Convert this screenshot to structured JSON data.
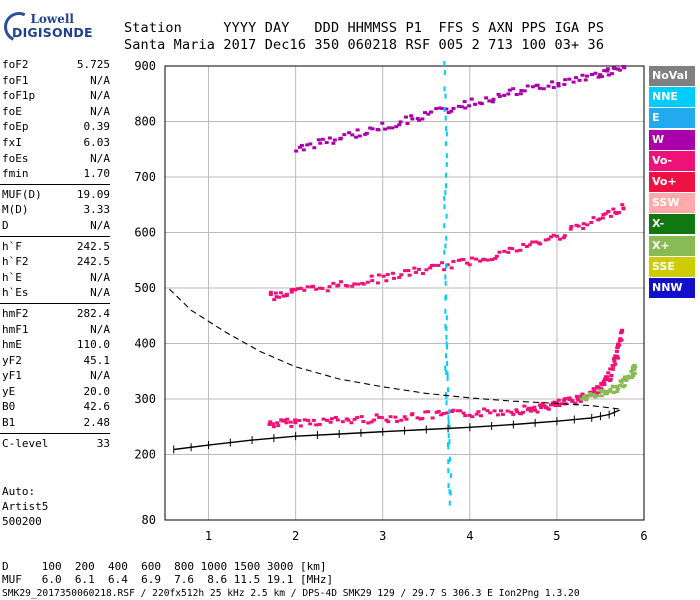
{
  "brand": {
    "line1": "Lowell",
    "line2": "DIGISONDE"
  },
  "header": {
    "line1": "Station     YYYY DAY   DDD HHMMSS P1  FFS S AXN PPS IGA PS",
    "line2": "Santa Maria 2017 Dec16 350 060218 RSF 005 2 713 100 03+ 36"
  },
  "params": [
    [
      {
        "label": "foF2",
        "value": "5.725"
      },
      {
        "label": "foF1",
        "value": "N/A"
      },
      {
        "label": "foF1p",
        "value": "N/A"
      },
      {
        "label": "foE",
        "value": "N/A"
      },
      {
        "label": "foEp",
        "value": "0.39"
      },
      {
        "label": "fxI",
        "value": "6.03"
      },
      {
        "label": "foEs",
        "value": "N/A"
      },
      {
        "label": "fmin",
        "value": "1.70"
      }
    ],
    [
      {
        "label": "MUF(D)",
        "value": "19.09"
      },
      {
        "label": "M(D)",
        "value": "3.33"
      },
      {
        "label": "D",
        "value": "N/A"
      }
    ],
    [
      {
        "label": "h`F",
        "value": "242.5"
      },
      {
        "label": "h`F2",
        "value": "242.5"
      },
      {
        "label": "h`E",
        "value": "N/A"
      },
      {
        "label": "h`Es",
        "value": "N/A"
      }
    ],
    [
      {
        "label": "hmF2",
        "value": "282.4"
      },
      {
        "label": "hmF1",
        "value": "N/A"
      },
      {
        "label": "hmE",
        "value": "110.0"
      },
      {
        "label": "yF2",
        "value": "45.1"
      },
      {
        "label": "yF1",
        "value": "N/A"
      },
      {
        "label": "yE",
        "value": "20.0"
      },
      {
        "label": "B0",
        "value": "42.6"
      },
      {
        "label": "B1",
        "value": "2.48"
      }
    ],
    [
      {
        "label": "C-level",
        "value": "33"
      }
    ]
  ],
  "auto": {
    "line1": "Auto:",
    "line2": "Artist5",
    "line3": "500200"
  },
  "footer": {
    "line1": "D     100  200  400  600  800 1000 1500 3000 [km]",
    "line2": "MUF   6.0  6.1  6.4  6.9  7.6  8.6 11.5 19.1 [MHz]",
    "line3": "SMK29_2017350060218.RSF / 220fx512h 25 kHz 2.5 km / DPS-4D SMK29 129 / 29.7 S 306.3 E Ion2Png 1.3.20"
  },
  "legend": [
    {
      "label": "NoVal",
      "color": "#808080"
    },
    {
      "label": "NNE",
      "color": "#00ccff"
    },
    {
      "label": "E",
      "color": "#22aaee"
    },
    {
      "label": "W",
      "color": "#aa00aa"
    },
    {
      "label": "Vo-",
      "color": "#ee1177"
    },
    {
      "label": "Vo+",
      "color": "#ee1144"
    },
    {
      "label": "SSW",
      "color": "#ffaaaa"
    },
    {
      "label": "X-",
      "color": "#117711"
    },
    {
      "label": "X+",
      "color": "#88bb55"
    },
    {
      "label": "SSE",
      "color": "#cccc00"
    },
    {
      "label": "NNW",
      "color": "#1111cc"
    }
  ],
  "chart_data": {
    "type": "scatter",
    "xlim": [
      0.5,
      6.0
    ],
    "ylim": [
      80,
      900
    ],
    "x_ticks": [
      1,
      2,
      3,
      4,
      5,
      6
    ],
    "x_tick_labels": [
      "1",
      "2",
      "3",
      "4",
      "5",
      "6"
    ],
    "y_ticks": [
      80,
      200,
      300,
      400,
      500,
      600,
      700,
      800,
      900
    ],
    "y_tick_labels": [
      "80",
      "200",
      "300",
      "400",
      "500",
      "600",
      "700",
      "800",
      "900"
    ],
    "grid": true,
    "series": [
      {
        "name": "Vo+",
        "kind": "trace",
        "color": "#ee1177",
        "points": [
          [
            1.7,
            255
          ],
          [
            2.0,
            258
          ],
          [
            2.5,
            261
          ],
          [
            3.0,
            265
          ],
          [
            3.5,
            270
          ],
          [
            4.0,
            274
          ],
          [
            4.5,
            279
          ],
          [
            4.8,
            284
          ],
          [
            5.0,
            290
          ],
          [
            5.2,
            298
          ],
          [
            5.4,
            310
          ],
          [
            5.5,
            320
          ],
          [
            5.6,
            340
          ],
          [
            5.7,
            380
          ],
          [
            5.75,
            430
          ]
        ]
      },
      {
        "name": "X+",
        "kind": "trace",
        "color": "#88bb55",
        "points": [
          [
            5.3,
            300
          ],
          [
            5.5,
            310
          ],
          [
            5.7,
            320
          ],
          [
            5.85,
            340
          ],
          [
            5.9,
            360
          ]
        ]
      },
      {
        "name": "Vo+",
        "kind": "trace",
        "color": "#ee1177",
        "points": [
          [
            1.7,
            485
          ],
          [
            2.0,
            493
          ],
          [
            2.5,
            505
          ],
          [
            3.0,
            518
          ],
          [
            3.5,
            533
          ],
          [
            4.0,
            548
          ],
          [
            4.5,
            568
          ],
          [
            5.0,
            592
          ],
          [
            5.5,
            625
          ],
          [
            5.8,
            650
          ]
        ]
      },
      {
        "name": "W",
        "kind": "trace",
        "color": "#aa00aa",
        "points": [
          [
            2.0,
            750
          ],
          [
            2.5,
            770
          ],
          [
            3.0,
            790
          ],
          [
            3.5,
            812
          ],
          [
            4.0,
            832
          ],
          [
            4.5,
            852
          ],
          [
            5.0,
            868
          ],
          [
            5.5,
            885
          ],
          [
            5.8,
            895
          ]
        ]
      },
      {
        "name": "NNE",
        "kind": "trace",
        "color": "#00ccff",
        "points": [
          [
            3.72,
            900
          ],
          [
            3.72,
            720
          ],
          [
            3.72,
            560
          ],
          [
            3.72,
            420
          ],
          [
            3.74,
            320
          ],
          [
            3.76,
            220
          ],
          [
            3.78,
            100
          ]
        ]
      }
    ],
    "profile_solid": [
      [
        0.6,
        209
      ],
      [
        1.0,
        217
      ],
      [
        1.5,
        226
      ],
      [
        2.0,
        233
      ],
      [
        2.5,
        237
      ],
      [
        3.0,
        241
      ],
      [
        3.5,
        245
      ],
      [
        4.0,
        249
      ],
      [
        4.5,
        254
      ],
      [
        5.0,
        260
      ],
      [
        5.4,
        266
      ],
      [
        5.6,
        272
      ],
      [
        5.72,
        280
      ]
    ],
    "profile_dashed": [
      [
        0.55,
        498
      ],
      [
        0.8,
        460
      ],
      [
        1.2,
        420
      ],
      [
        1.6,
        385
      ],
      [
        2.0,
        358
      ],
      [
        2.5,
        336
      ],
      [
        3.0,
        322
      ],
      [
        3.5,
        310
      ],
      [
        4.0,
        302
      ],
      [
        4.5,
        296
      ],
      [
        5.0,
        292
      ],
      [
        5.4,
        288
      ],
      [
        5.72,
        282
      ]
    ]
  }
}
